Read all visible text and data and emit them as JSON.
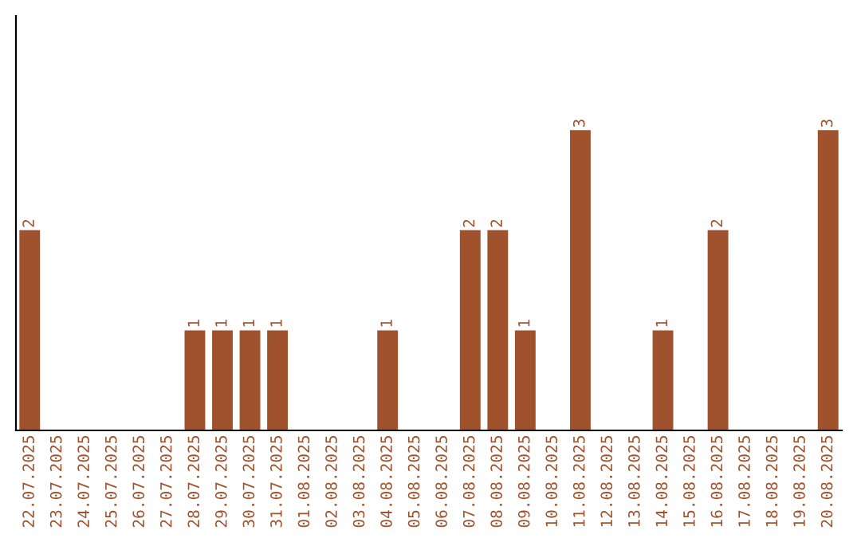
{
  "chart_data": {
    "type": "bar",
    "categories": [
      "22.07.2025",
      "23.07.2025",
      "24.07.2025",
      "25.07.2025",
      "26.07.2025",
      "27.07.2025",
      "28.07.2025",
      "29.07.2025",
      "30.07.2025",
      "31.07.2025",
      "01.08.2025",
      "02.08.2025",
      "03.08.2025",
      "04.08.2025",
      "05.08.2025",
      "06.08.2025",
      "07.08.2025",
      "08.08.2025",
      "09.08.2025",
      "10.08.2025",
      "11.08.2025",
      "12.08.2025",
      "13.08.2025",
      "14.08.2025",
      "15.08.2025",
      "16.08.2025",
      "17.08.2025",
      "18.08.2025",
      "19.08.2025",
      "20.08.2025"
    ],
    "values": [
      2,
      null,
      null,
      null,
      null,
      null,
      1,
      1,
      1,
      1,
      null,
      null,
      null,
      1,
      null,
      null,
      2,
      2,
      1,
      null,
      3,
      null,
      null,
      1,
      null,
      2,
      null,
      null,
      null,
      3
    ],
    "value_labels": [
      "2",
      null,
      null,
      null,
      null,
      null,
      "1",
      "1",
      "1",
      "1",
      null,
      null,
      null,
      "1",
      null,
      null,
      "2",
      "2",
      "1",
      null,
      "3",
      null,
      null,
      "1",
      null,
      "2",
      null,
      null,
      null,
      "3"
    ],
    "color": "#a0522d",
    "tick_labels": "x",
    "grid": false,
    "legend": false
  }
}
